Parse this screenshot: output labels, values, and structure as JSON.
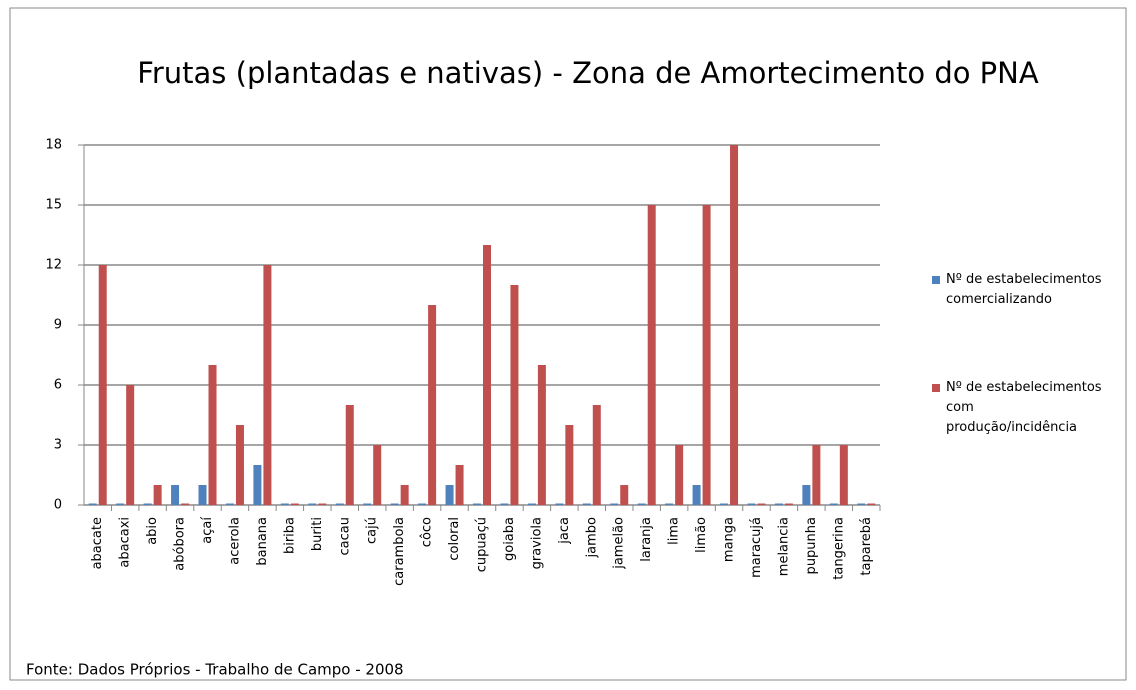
{
  "chart_data": {
    "type": "bar",
    "title": "Frutas (plantadas e nativas) - Zona de Amortecimento do PNA",
    "categories": [
      "abacate",
      "abacaxi",
      "abio",
      "abóbora",
      "açaí",
      "acerola",
      "banana",
      "biriba",
      "buriti",
      "cacau",
      "cajú",
      "carambola",
      "côco",
      "coloral",
      "cupuaçú",
      "goiaba",
      "graviola",
      "jaca",
      "jambo",
      "jamelão",
      "laranja",
      "lima",
      "limão",
      "manga",
      "maracujá",
      "melancia",
      "pupunha",
      "tangerina",
      "taparebá"
    ],
    "series": [
      {
        "name": "Nº de estabelecimentos comercializando",
        "color": "#4f81bd",
        "values": [
          0,
          0,
          0,
          1,
          1,
          0,
          2,
          0,
          0,
          0,
          0,
          0,
          0,
          1,
          0,
          0,
          0,
          0,
          0,
          0,
          0,
          0,
          1,
          0,
          0,
          0,
          1,
          0,
          0
        ]
      },
      {
        "name": "Nº de estabelecimentos com produção/incidência",
        "color": "#c0504d",
        "values": [
          12,
          6,
          1,
          0,
          7,
          4,
          12,
          0,
          0,
          5,
          3,
          1,
          10,
          2,
          13,
          11,
          7,
          4,
          5,
          1,
          15,
          3,
          15,
          18,
          0,
          0,
          3,
          3,
          0
        ]
      }
    ],
    "ylim": [
      0,
      18
    ],
    "yticks": [
      0,
      3,
      6,
      9,
      12,
      15,
      18
    ],
    "grid": true,
    "source": "Fonte: Dados Próprios - Trabalho de Campo - 2008"
  }
}
